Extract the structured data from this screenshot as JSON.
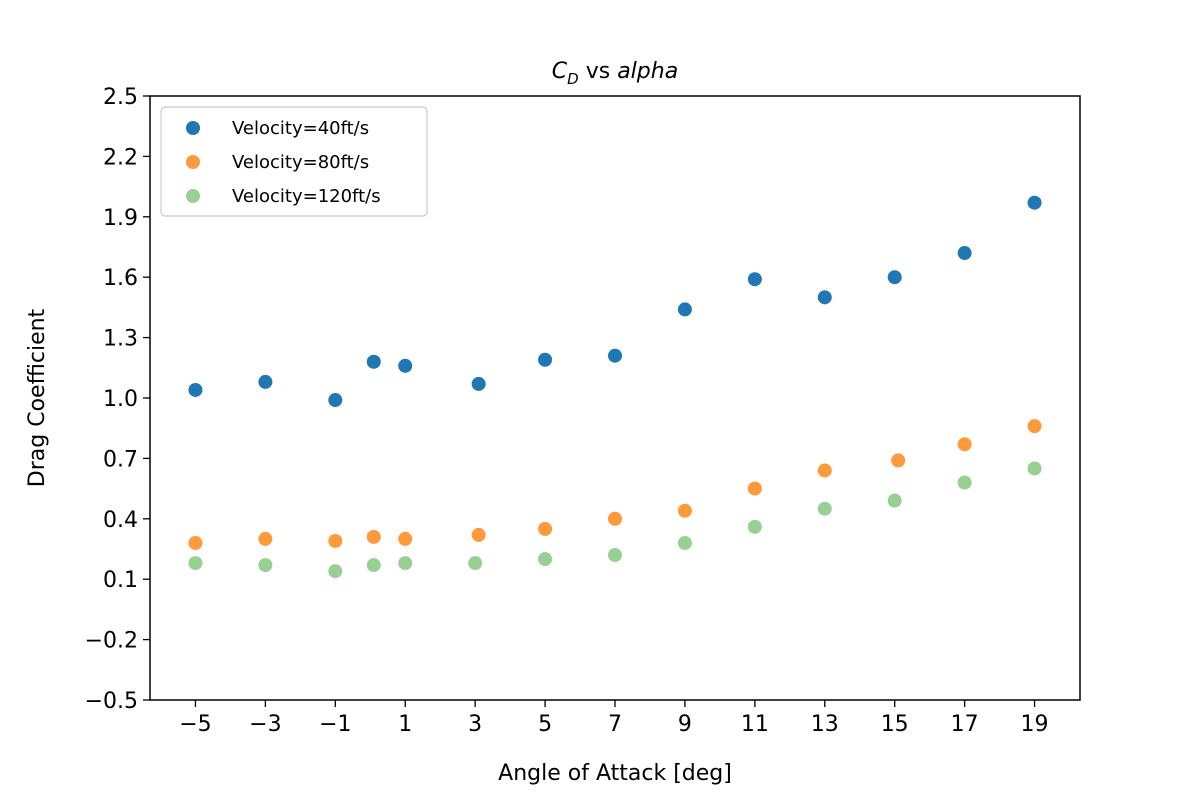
{
  "chart_data": {
    "type": "scatter",
    "title": {
      "main": "C",
      "sub": "D",
      "middle": " vs ",
      "var": "alpha"
    },
    "xlabel": "Angle of Attack [deg]",
    "ylabel": "Drag Coefficient",
    "xlim": [
      -6.3,
      20.3
    ],
    "ylim": [
      -0.5,
      2.5
    ],
    "xticks": [
      -5,
      -3,
      -1,
      1,
      3,
      5,
      7,
      9,
      11,
      13,
      15,
      17,
      19
    ],
    "xtick_labels": [
      "−5",
      "−3",
      "−1",
      "1",
      "3",
      "5",
      "7",
      "9",
      "11",
      "13",
      "15",
      "17",
      "19"
    ],
    "yticks": [
      -0.5,
      -0.2,
      0.1,
      0.4,
      0.7,
      1.0,
      1.3,
      1.6,
      1.9,
      2.2,
      2.5
    ],
    "ytick_labels": [
      "−0.5",
      "−0.2",
      "0.1",
      "0.4",
      "0.7",
      "1.0",
      "1.3",
      "1.6",
      "1.9",
      "2.2",
      "2.5"
    ],
    "grid": false,
    "legend_position": "top-left",
    "series": [
      {
        "name": "Velocity=40ft/s",
        "color": "#1f77b4",
        "points": [
          [
            -5,
            1.04
          ],
          [
            -3,
            1.08
          ],
          [
            -1,
            0.99
          ],
          [
            0.1,
            1.18
          ],
          [
            1,
            1.16
          ],
          [
            3.1,
            1.07
          ],
          [
            5,
            1.19
          ],
          [
            7,
            1.21
          ],
          [
            9,
            1.44
          ],
          [
            11,
            1.59
          ],
          [
            13,
            1.5
          ],
          [
            15,
            1.6
          ],
          [
            17,
            1.72
          ],
          [
            19,
            1.97
          ]
        ]
      },
      {
        "name": "Velocity=80ft/s",
        "color": "#ff9a3c",
        "points": [
          [
            -5,
            0.28
          ],
          [
            -3,
            0.3
          ],
          [
            -1,
            0.29
          ],
          [
            0.1,
            0.31
          ],
          [
            1,
            0.3
          ],
          [
            3.1,
            0.32
          ],
          [
            5,
            0.35
          ],
          [
            7,
            0.4
          ],
          [
            9,
            0.44
          ],
          [
            11,
            0.55
          ],
          [
            13,
            0.64
          ],
          [
            15.1,
            0.69
          ],
          [
            17,
            0.77
          ],
          [
            19,
            0.86
          ]
        ]
      },
      {
        "name": "Velocity=120ft/s",
        "color": "#98d094",
        "points": [
          [
            -5,
            0.18
          ],
          [
            -3,
            0.17
          ],
          [
            -1,
            0.14
          ],
          [
            0.1,
            0.17
          ],
          [
            1,
            0.18
          ],
          [
            3,
            0.18
          ],
          [
            5,
            0.2
          ],
          [
            7,
            0.22
          ],
          [
            9,
            0.28
          ],
          [
            11,
            0.36
          ],
          [
            13,
            0.45
          ],
          [
            15,
            0.49
          ],
          [
            17,
            0.58
          ],
          [
            19,
            0.65
          ]
        ]
      }
    ]
  }
}
